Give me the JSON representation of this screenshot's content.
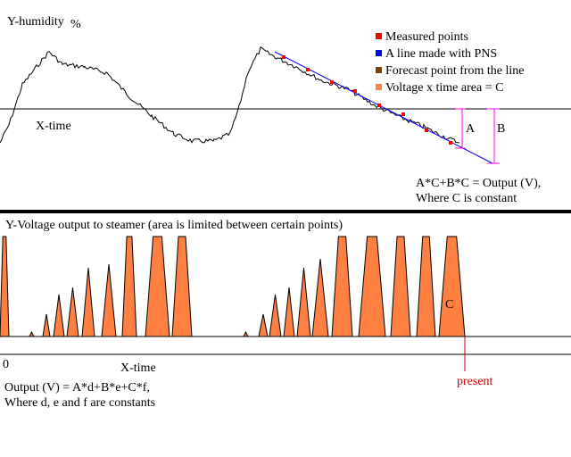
{
  "top_panel": {
    "y_label": "Y-humidity",
    "y_unit": "%",
    "x_label": "X-time",
    "marker_a": "A",
    "marker_b": "B",
    "formula_line1": "A*C+B*C = Output (V),",
    "formula_line2": "Where C is constant",
    "legend": [
      {
        "label": "Measured points",
        "color": "#ff0000"
      },
      {
        "label": "A line made with PNS",
        "color": "#0000ff"
      },
      {
        "label": "Forecast point from the line",
        "color": "#804000"
      },
      {
        "label": "Voltage x time area = C",
        "color": "#ff8040"
      }
    ]
  },
  "bottom_panel": {
    "title": "Y-Voltage output to steamer (area is limited between certain points)",
    "zero_label": "0",
    "x_label": "X-time",
    "area_label": "C",
    "present_label": "present",
    "formula_line1": "Output (V) = A*d+B*e+C*f,",
    "formula_line2": "Where d, e and f are constants"
  },
  "colors": {
    "humidity_line": "#000000",
    "pns_line": "#0000ff",
    "measured_points": "#ff0000",
    "marker_lines": "#ff00ff",
    "voltage_fill": "#ff8040",
    "present_marker": "#cc0000",
    "divider": "#000000"
  }
}
